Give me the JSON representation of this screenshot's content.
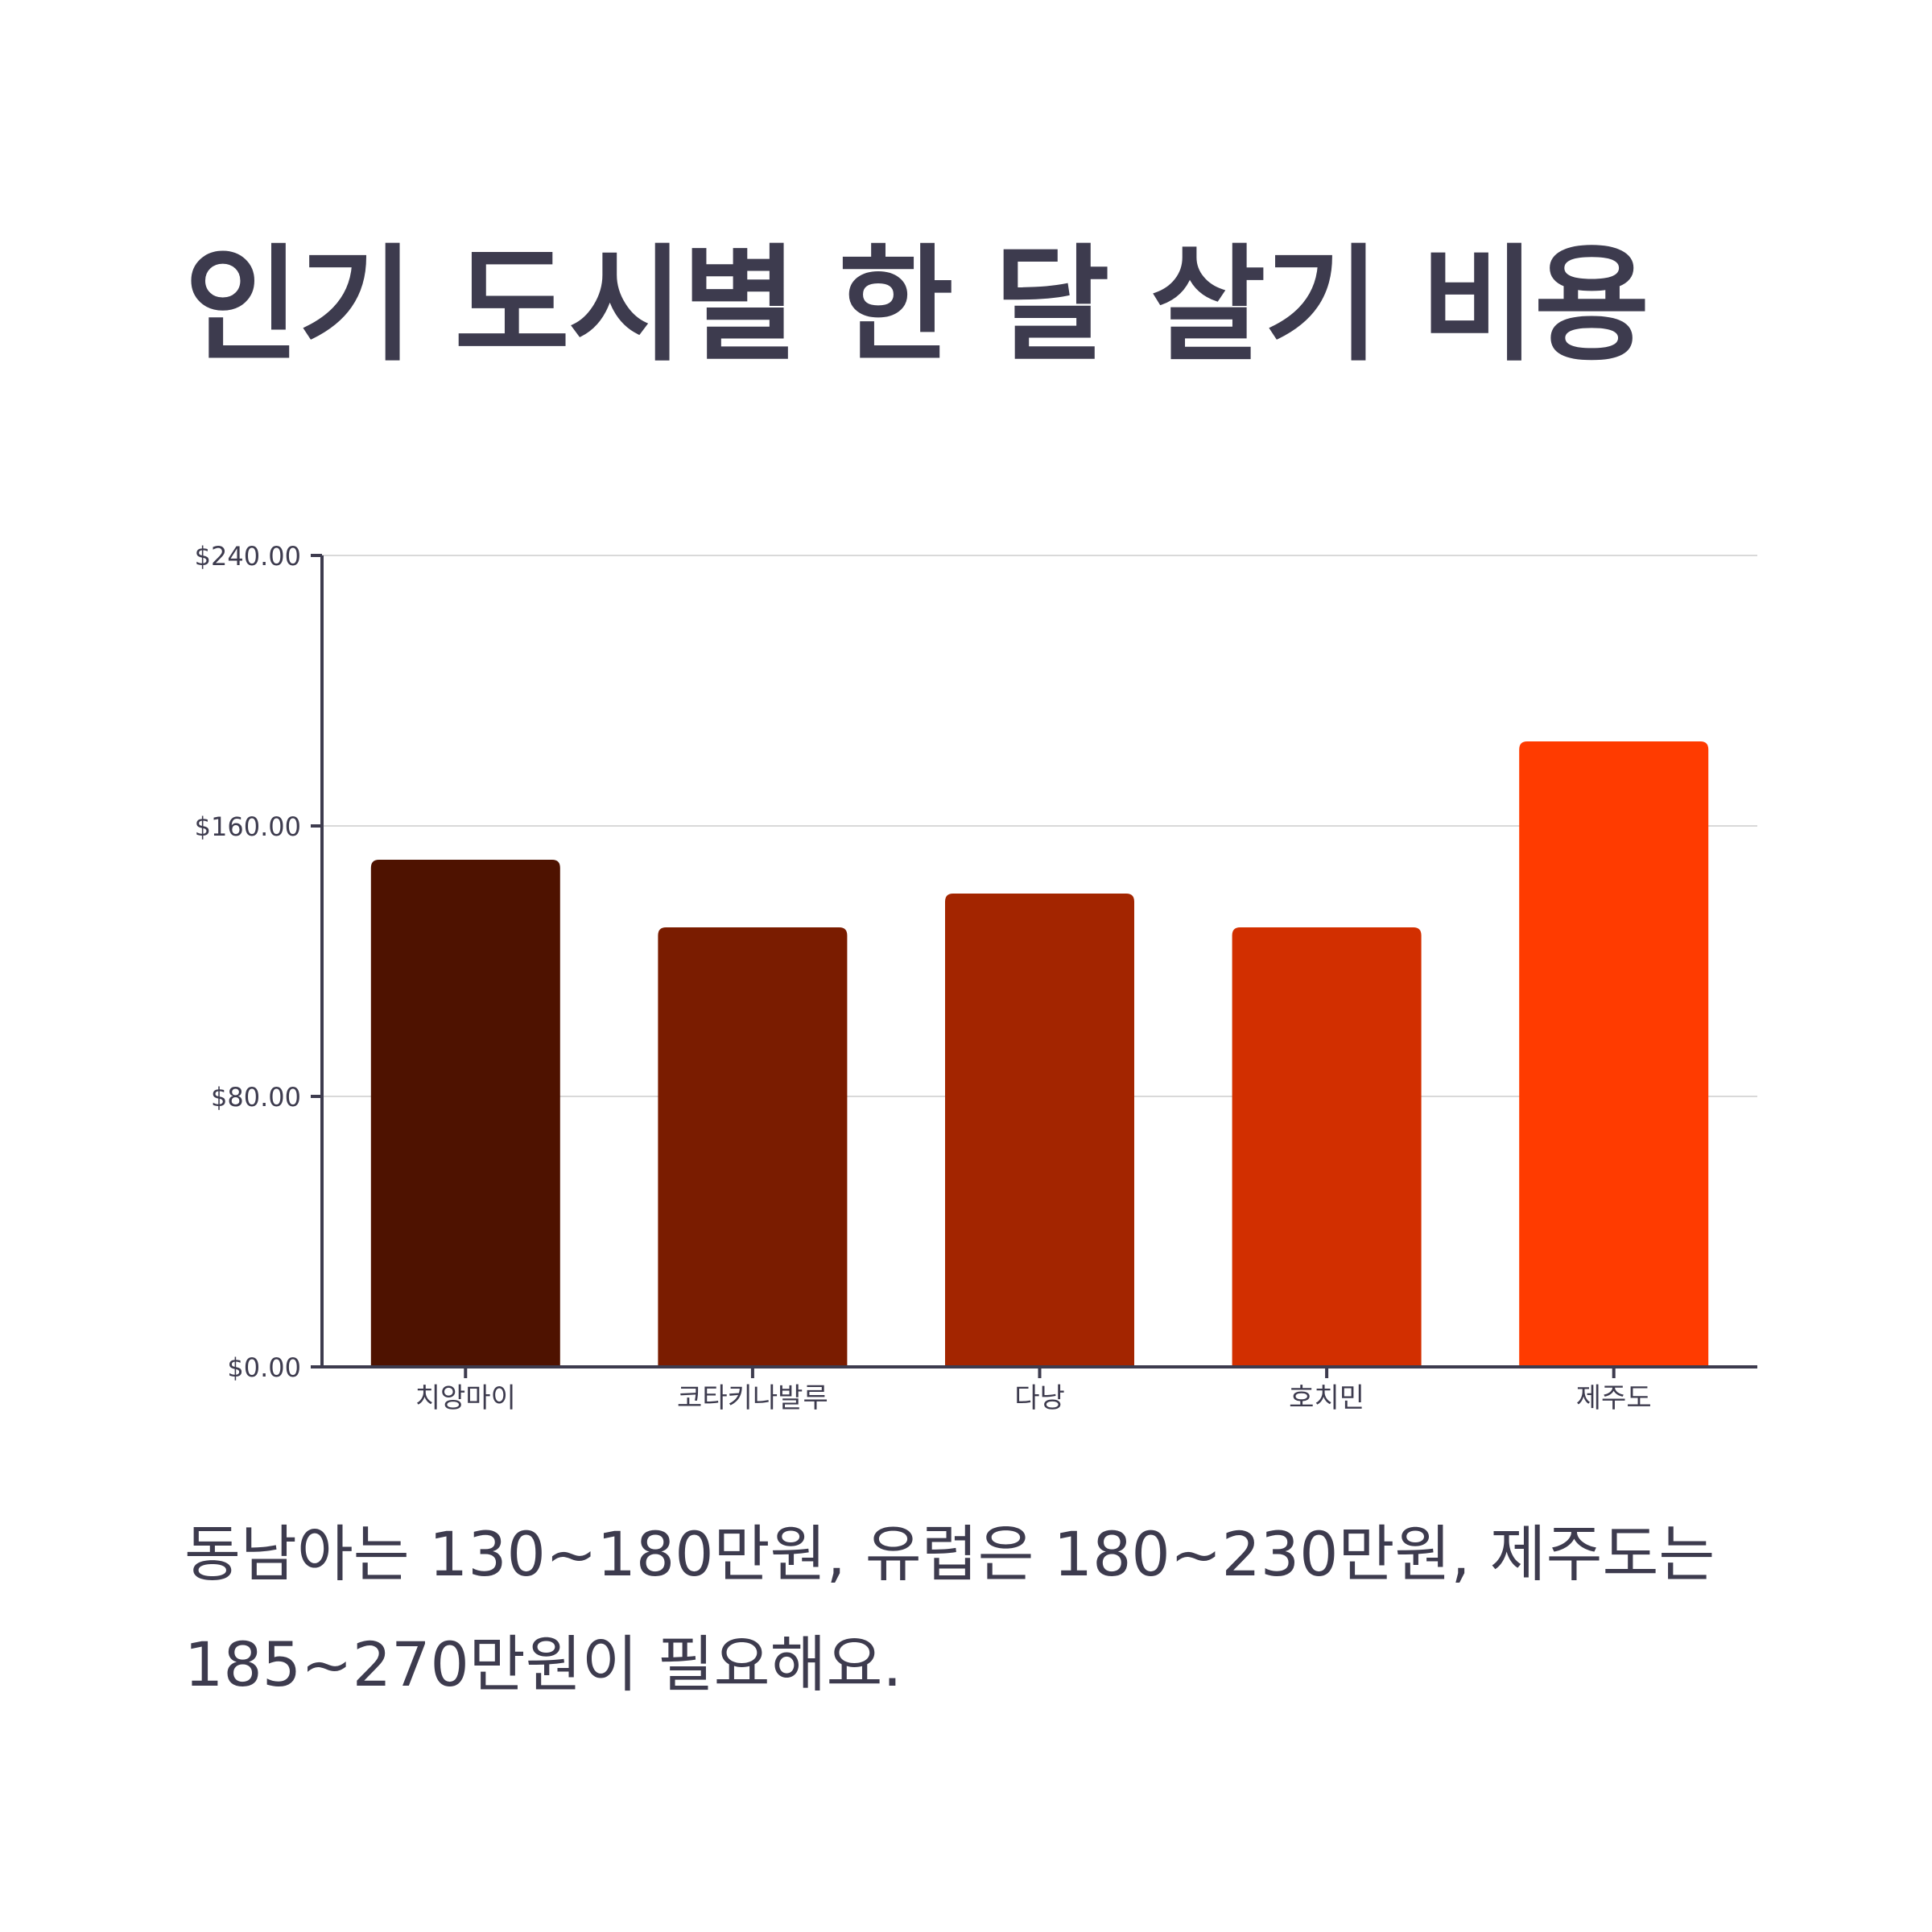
{
  "title": "인기 도시별 한 달 살기 비용",
  "caption": "동남아는 130~180만원, 유럽은 180~230만원, 제주도는 185~270만원이 필요해요.",
  "colors": {
    "text": "#3d3b4e",
    "grid": "#d9d9d9",
    "axis": "#3d3b4e"
  },
  "chart_data": {
    "type": "bar",
    "title": "",
    "xlabel": "",
    "ylabel": "",
    "categories": [
      "치앙마이",
      "코타키나발루",
      "다낭",
      "호치민",
      "제주도"
    ],
    "values": [
      150,
      130,
      140,
      130,
      185
    ],
    "colors": [
      "#4e1200",
      "#7a1c00",
      "#a32500",
      "#d22f00",
      "#ff3b00"
    ],
    "ylim": [
      0,
      240
    ],
    "yticks": [
      0,
      80,
      160,
      240
    ],
    "ytick_labels": [
      "$0.00",
      "$80.00",
      "$160.00",
      "$240.00"
    ],
    "grid": true,
    "legend": "none"
  }
}
